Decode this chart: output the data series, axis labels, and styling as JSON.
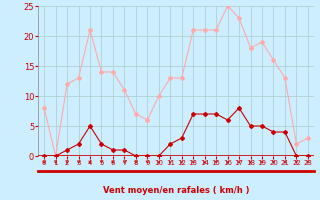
{
  "hours": [
    0,
    1,
    2,
    3,
    4,
    5,
    6,
    7,
    8,
    9,
    10,
    11,
    12,
    13,
    14,
    15,
    16,
    17,
    18,
    19,
    20,
    21,
    22,
    23
  ],
  "vent_moyen": [
    0,
    0,
    1,
    2,
    5,
    2,
    1,
    1,
    0,
    0,
    0,
    2,
    3,
    7,
    7,
    7,
    6,
    8,
    5,
    5,
    4,
    4,
    0,
    0
  ],
  "rafales": [
    8,
    0,
    12,
    13,
    21,
    14,
    14,
    11,
    7,
    6,
    10,
    13,
    13,
    21,
    21,
    21,
    25,
    23,
    18,
    19,
    16,
    13,
    2,
    3
  ],
  "color_moyen": "#cc0000",
  "color_rafales": "#ffaaaa",
  "background": "#cceeff",
  "grid_color": "#aacccc",
  "xlabel": "Vent moyen/en rafales ( km/h )",
  "xlabel_color": "#cc0000",
  "tick_color": "#cc0000",
  "arrow_color": "#cc0000",
  "ylim": [
    0,
    25
  ],
  "yticks": [
    0,
    5,
    10,
    15,
    20,
    25
  ],
  "xlim": [
    -0.5,
    23.5
  ],
  "marker": "D",
  "markersize_moyen": 2.0,
  "markersize_rafales": 2.0,
  "linewidth": 0.8
}
